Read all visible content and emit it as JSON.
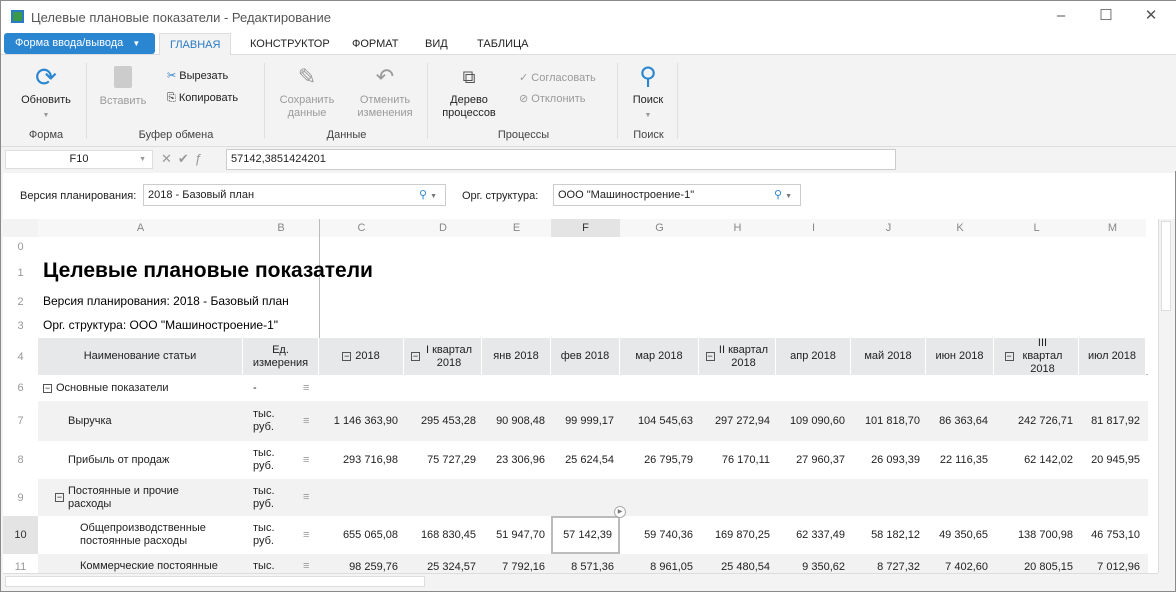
{
  "window": {
    "title": "Целевые плановые показатели - Редактирование"
  },
  "form_button": "Форма ввода/вывода",
  "tabs": [
    "ГЛАВНАЯ",
    "КОНСТРУКТОР",
    "ФОРМАТ",
    "ВИД",
    "ТАБЛИЦА"
  ],
  "ribbon": {
    "refresh": "Обновить",
    "paste": "Вставить",
    "cut": "Вырезать",
    "copy": "Копировать",
    "save": "Сохранить данные",
    "cancel": "Отменить изменения",
    "tree": "Дерево процессов",
    "approve": "Согласовать",
    "reject": "Отклонить",
    "search": "Поиск",
    "groups": [
      "Форма",
      "Буфер обмена",
      "Данные",
      "Процессы",
      "Поиск"
    ]
  },
  "formula_bar": {
    "cell": "F10",
    "value": "57142,3851424201"
  },
  "params": {
    "version_label": "Версия планирования:",
    "version_value": "2018 - Базовый план",
    "org_label": "Орг. структура:",
    "org_value": "ООО \"Машиностроение-1\""
  },
  "columns": [
    "A",
    "B",
    "C",
    "D",
    "E",
    "F",
    "G",
    "H",
    "I",
    "J",
    "K",
    "L",
    "M"
  ],
  "sheet": {
    "title": "Целевые плановые показатели",
    "line2": "Версия планирования: 2018 - Базовый план",
    "line3": "Орг. структура: ООО \"Машиностроение-1\""
  },
  "header": {
    "name": "Наименование статьи",
    "unit": "Ед. измерения",
    "periods": [
      "2018",
      "I квартал 2018",
      "янв 2018",
      "фев 2018",
      "мар 2018",
      "II квартал 2018",
      "апр 2018",
      "май 2018",
      "июн 2018",
      "III квартал 2018",
      "июл 2018"
    ]
  },
  "rows": [
    {
      "num": "6",
      "name": "Основные показатели",
      "unit": "-",
      "values": []
    },
    {
      "num": "7",
      "name": "Выручка",
      "unit": "тыс. руб.",
      "values": [
        "1 146 363,90",
        "295 453,28",
        "90 908,48",
        "99 999,17",
        "104 545,63",
        "297 272,94",
        "109 090,60",
        "101 818,70",
        "86 363,64",
        "242 726,71",
        "81 817,92"
      ]
    },
    {
      "num": "8",
      "name": "Прибыль от продаж",
      "unit": "тыс. руб.",
      "values": [
        "293 716,98",
        "75 727,29",
        "23 306,96",
        "25 624,54",
        "26 795,79",
        "76 170,11",
        "27 960,37",
        "26 093,39",
        "22 116,35",
        "62 142,02",
        "20 945,95"
      ]
    },
    {
      "num": "9",
      "name": "Постоянные и прочие расходы",
      "unit": "тыс. руб.",
      "values": []
    },
    {
      "num": "10",
      "name": "Общепроизводственные постоянные расходы",
      "unit": "тыс. руб.",
      "values": [
        "655 065,08",
        "168 830,45",
        "51 947,70",
        "57 142,39",
        "59 740,36",
        "169 870,25",
        "62 337,49",
        "58 182,12",
        "49 350,65",
        "138 700,98",
        "46 753,10"
      ]
    },
    {
      "num": "11",
      "name": "Коммерческие постоянные",
      "unit": "тыс.",
      "values": [
        "98 259,76",
        "25 324,57",
        "7 792,16",
        "8 571,36",
        "8 961,05",
        "25 480,54",
        "9 350,62",
        "8 727,32",
        "7 402,60",
        "20 805,15",
        "7 012,96"
      ]
    }
  ]
}
